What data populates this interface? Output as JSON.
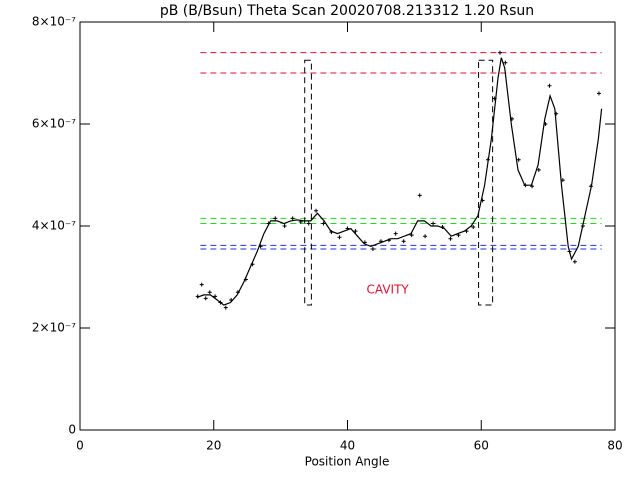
{
  "chart_data": {
    "type": "line",
    "title": "pB (B/Bsun) Theta Scan 20020708.213312 1.20 Rsun",
    "x_label": "Position Angle",
    "xlim": [
      0,
      80
    ],
    "xticks": [
      0,
      20,
      40,
      60,
      80
    ],
    "ylim": [
      0,
      8e-07
    ],
    "yticks": [
      0,
      {
        "value": 2e-07,
        "label": "2×10⁻⁷"
      },
      {
        "value": 4e-07,
        "label": "4×10⁻⁷"
      },
      {
        "value": 6e-07,
        "label": "6×10⁻⁷"
      },
      {
        "value": 8e-07,
        "label": "8×10⁻⁷"
      }
    ],
    "series": [
      {
        "kind": "line",
        "color": "#000000",
        "x": [
          17.5,
          18.5,
          19.5,
          20.5,
          21.5,
          22.5,
          23.5,
          24.5,
          25.5,
          26.5,
          27.5,
          28.5,
          29.5,
          30.5,
          31.5,
          32.5,
          33.5,
          34.5,
          35.5,
          36.5,
          37.5,
          38.5,
          39.5,
          40.5,
          41.5,
          42.5,
          43.5,
          44.5,
          45.5,
          46.5,
          47.5,
          48.5,
          49.5,
          50.5,
          51.5,
          52.5,
          53.5,
          54.5,
          55.5,
          56.5,
          57.5,
          58.5,
          59.5,
          60.5,
          61.5,
          62.5,
          63.0,
          63.5,
          64.5,
          65.5,
          66.5,
          67.5,
          68.5,
          69.5,
          70.3,
          71.0,
          72.0,
          73.0,
          73.5,
          74.5,
          75.5,
          76.5,
          77.5,
          78.0
        ],
        "values": [
          2.6e-07,
          2.65e-07,
          2.65e-07,
          2.55e-07,
          2.45e-07,
          2.5e-07,
          2.65e-07,
          2.9e-07,
          3.2e-07,
          3.5e-07,
          3.85e-07,
          4.1e-07,
          4.1e-07,
          4.05e-07,
          4.1e-07,
          4.12e-07,
          4.1e-07,
          4.1e-07,
          4.25e-07,
          4.1e-07,
          3.9e-07,
          3.85e-07,
          3.9e-07,
          3.95e-07,
          3.8e-07,
          3.65e-07,
          3.6e-07,
          3.65e-07,
          3.7e-07,
          3.75e-07,
          3.75e-07,
          3.8e-07,
          3.85e-07,
          4.1e-07,
          4.1e-07,
          4e-07,
          4e-07,
          3.95e-07,
          3.8e-07,
          3.85e-07,
          3.9e-07,
          4e-07,
          4.2e-07,
          4.8e-07,
          5.7e-07,
          6.9e-07,
          7.3e-07,
          7.1e-07,
          6e-07,
          5.1e-07,
          4.8e-07,
          4.8e-07,
          5.2e-07,
          6.1e-07,
          6.55e-07,
          6.3e-07,
          4.8e-07,
          3.6e-07,
          3.35e-07,
          3.6e-07,
          4.2e-07,
          4.8e-07,
          5.7e-07,
          6.3e-07
        ]
      },
      {
        "kind": "points",
        "color": "#000000",
        "x": [
          17.6,
          18.2,
          18.8,
          19.4,
          20.2,
          21.0,
          21.8,
          22.6,
          23.6,
          24.8,
          25.8,
          27.0,
          28.2,
          29.2,
          30.6,
          31.8,
          33.0,
          34.2,
          35.3,
          36.4,
          37.6,
          38.8,
          40.0,
          41.2,
          42.6,
          43.8,
          45.0,
          46.2,
          47.2,
          48.4,
          49.6,
          50.8,
          51.6,
          52.8,
          54.2,
          55.4,
          56.6,
          57.8,
          58.8,
          60.2,
          61.0,
          62.0,
          62.8,
          63.6,
          64.6,
          65.6,
          66.6,
          67.6,
          68.6,
          69.6,
          70.2,
          71.2,
          72.2,
          73.2,
          74.0,
          75.2,
          76.4,
          77.6
        ],
        "values": [
          2.62e-07,
          2.85e-07,
          2.58e-07,
          2.7e-07,
          2.62e-07,
          2.5e-07,
          2.4e-07,
          2.55e-07,
          2.7e-07,
          2.95e-07,
          3.25e-07,
          3.6e-07,
          4.05e-07,
          4.15e-07,
          4e-07,
          4.15e-07,
          4.08e-07,
          4.05e-07,
          4.3e-07,
          4.05e-07,
          3.88e-07,
          3.78e-07,
          3.95e-07,
          3.9e-07,
          3.68e-07,
          3.55e-07,
          3.7e-07,
          3.72e-07,
          3.85e-07,
          3.7e-07,
          3.82e-07,
          4.6e-07,
          3.8e-07,
          4.05e-07,
          3.98e-07,
          3.75e-07,
          3.82e-07,
          3.9e-07,
          3.98e-07,
          4.5e-07,
          5.3e-07,
          6.5e-07,
          7.4e-07,
          7.2e-07,
          6.1e-07,
          5.3e-07,
          4.8e-07,
          4.78e-07,
          5.1e-07,
          6e-07,
          6.75e-07,
          6.2e-07,
          4.9e-07,
          3.5e-07,
          3.3e-07,
          4e-07,
          4.78e-07,
          6.6e-07
        ]
      }
    ],
    "hline_xlim": [
      18,
      78
    ],
    "hlines": [
      {
        "y": 7.4e-07,
        "color": "#dd1133"
      },
      {
        "y": 7e-07,
        "color": "#dd1133"
      },
      {
        "y": 4.15e-07,
        "color": "#22dd22"
      },
      {
        "y": 4.05e-07,
        "color": "#22dd22"
      },
      {
        "y": 3.62e-07,
        "color": "#2233dd"
      },
      {
        "y": 3.55e-07,
        "color": "#2233dd"
      }
    ],
    "boxes": [
      {
        "x": [
          33.6,
          34.6
        ],
        "y": [
          2.45e-07,
          7.25e-07
        ]
      },
      {
        "x": [
          59.6,
          61.7
        ],
        "y": [
          2.45e-07,
          7.25e-07
        ]
      }
    ],
    "annotation": {
      "text": "CAVITY",
      "x": 46,
      "y": 2.75e-07,
      "color": "#dd1133"
    }
  }
}
